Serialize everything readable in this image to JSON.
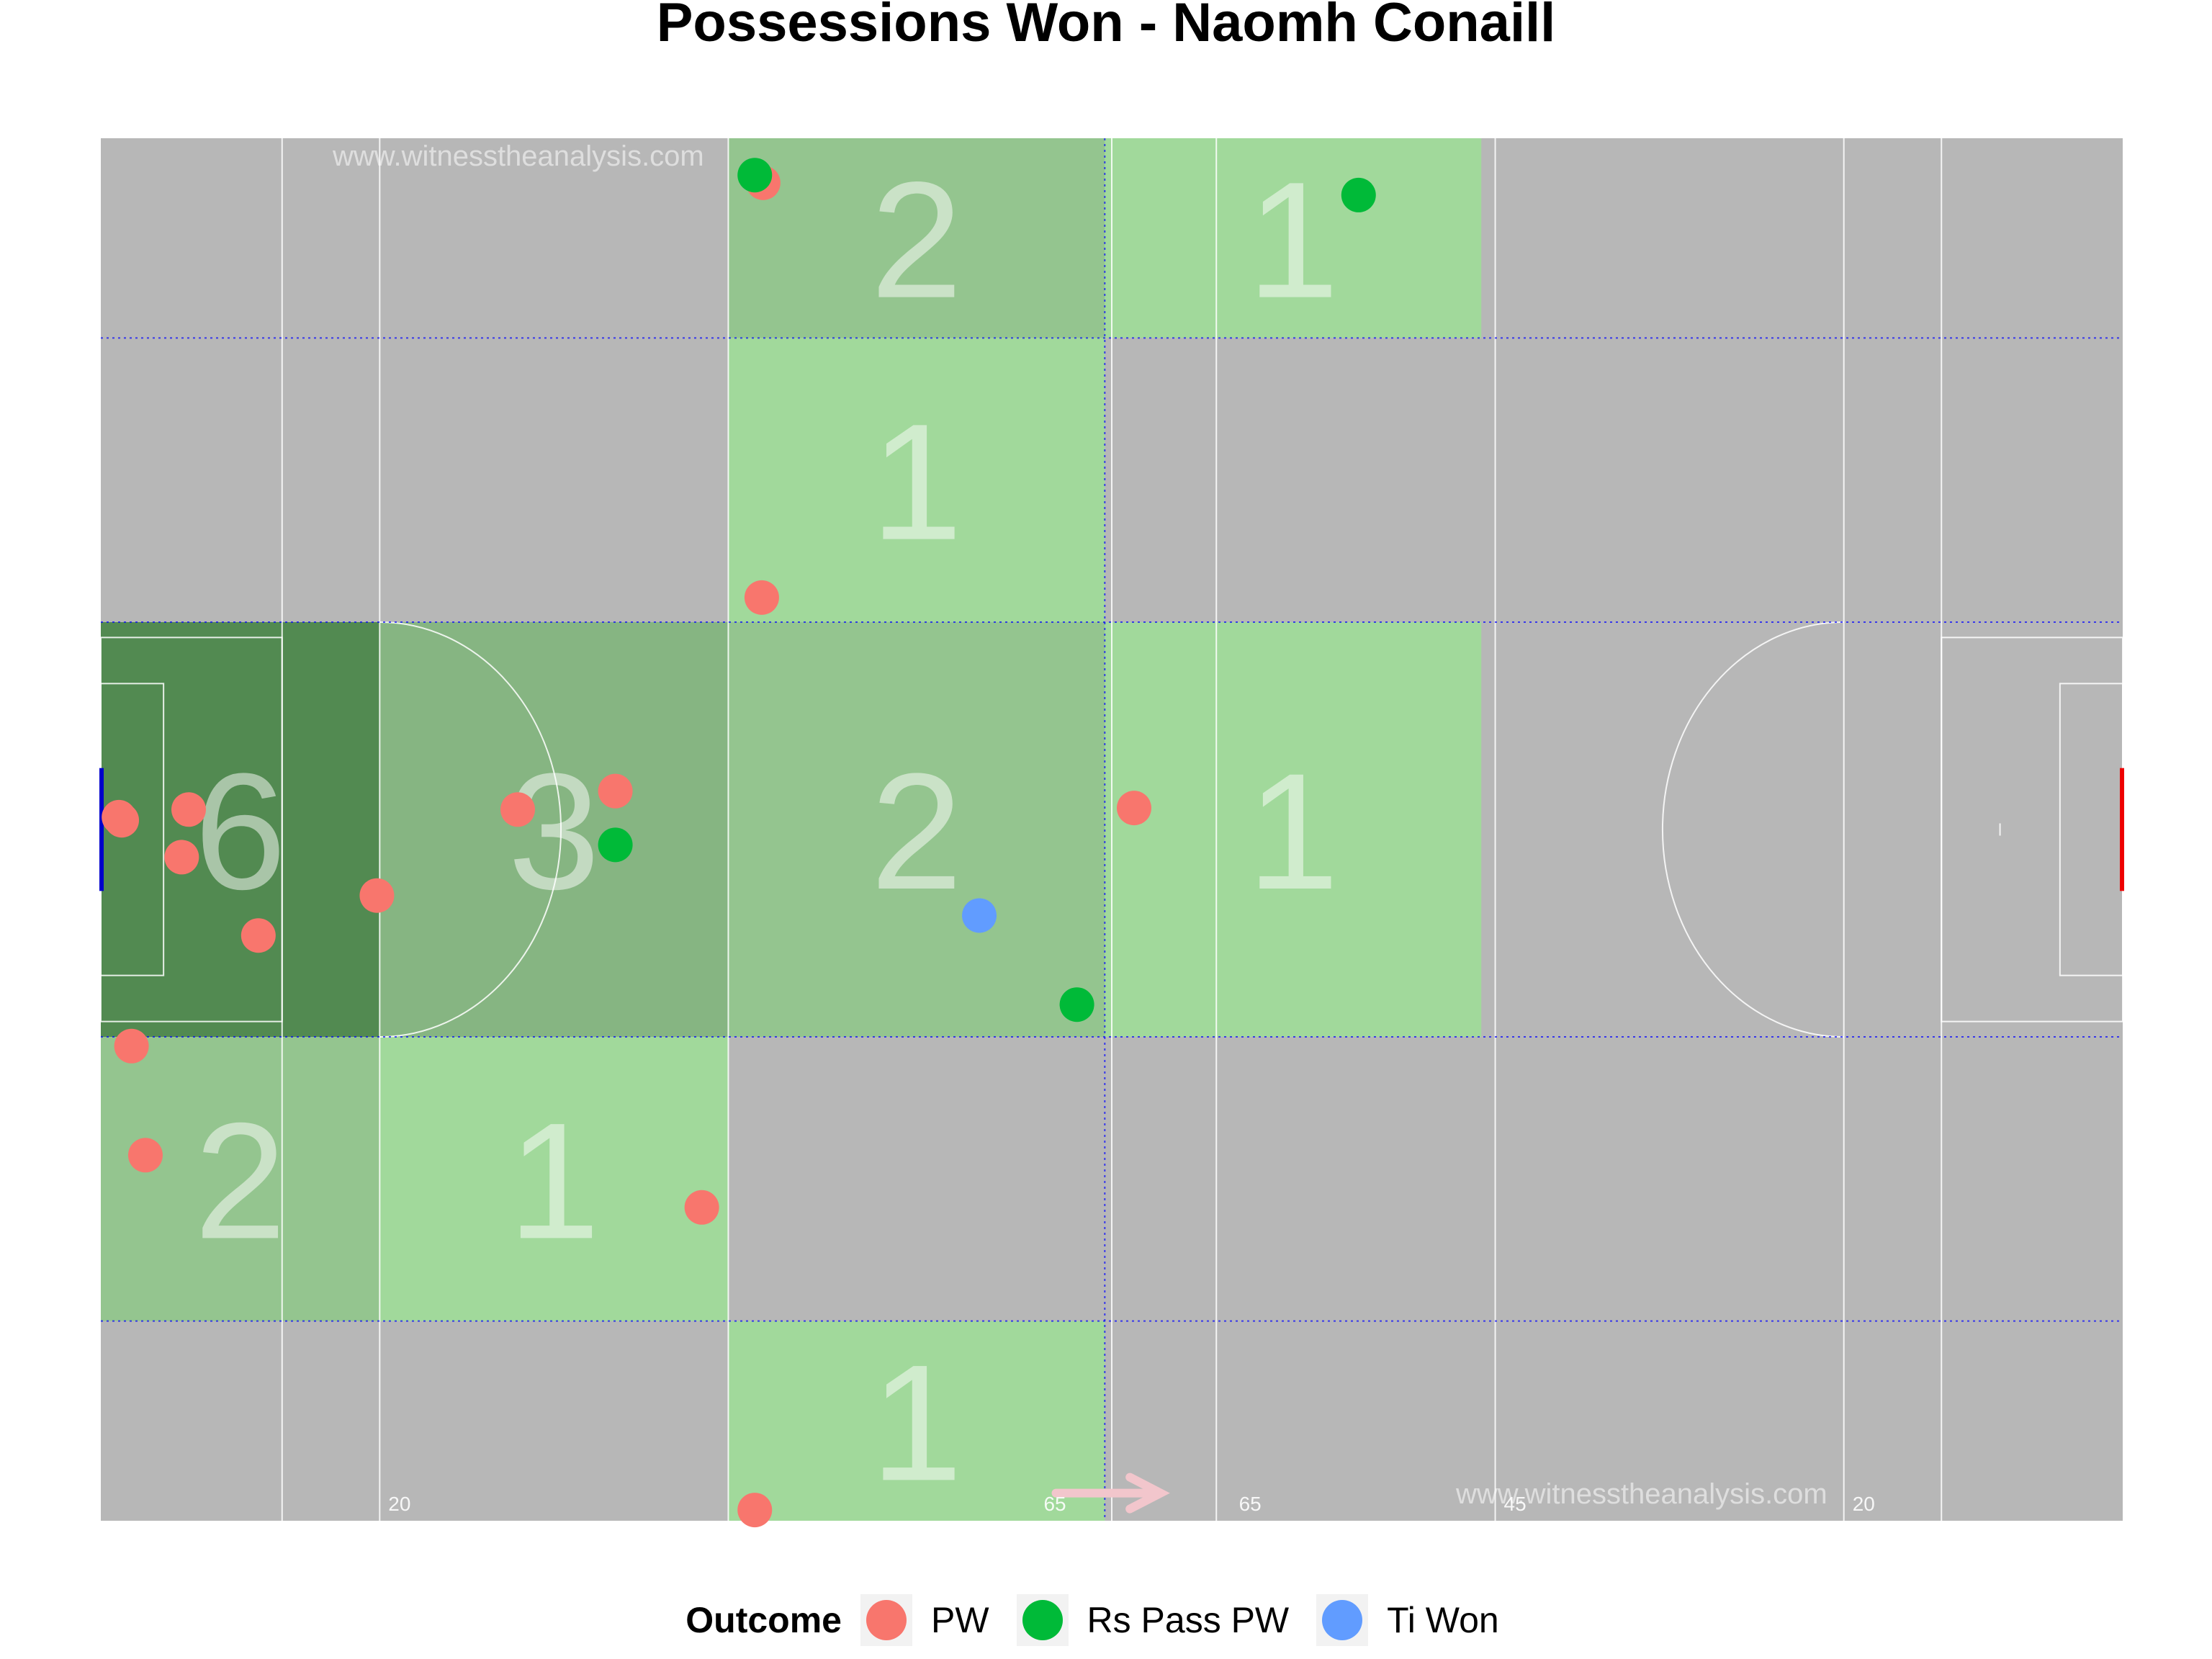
{
  "title": "Possessions Won - Naomh Conaill",
  "watermarks": [
    "www.witnesstheanalysis.com",
    "www.witnesstheanalysis.com"
  ],
  "colors": {
    "pitch": "#b7b7b7",
    "PW": "#f8766d",
    "Rs Pass PW": "#00ba38",
    "Ti Won": "#619cff",
    "zone_low": "#a1d99b",
    "zone_mid": "#94c58f",
    "zone_high": "#86b582",
    "zone_max": "#528a51",
    "zone_line": "#0000ff"
  },
  "legend": {
    "title": "Outcome",
    "items": [
      {
        "label": "PW",
        "color": "#f8766d"
      },
      {
        "label": "Rs Pass PW",
        "color": "#00ba38"
      },
      {
        "label": "Ti Won",
        "color": "#619cff"
      }
    ]
  },
  "pitch_line_labels": [
    "20",
    "65",
    "65",
    "45",
    "20"
  ],
  "chart_data": {
    "type": "scatter",
    "title": "Possessions Won - Naomh Conaill",
    "xlim": [
      0,
      145
    ],
    "ylim": [
      0,
      90
    ],
    "zone_counts": [
      {
        "x": [
          45,
          72
        ],
        "y": [
          77,
          90
        ],
        "count": 2
      },
      {
        "x": [
          72,
          99
        ],
        "y": [
          77,
          90
        ],
        "count": 1
      },
      {
        "x": [
          45,
          72
        ],
        "y": [
          58.5,
          77
        ],
        "count": 1
      },
      {
        "x": [
          0,
          20
        ],
        "y": [
          31.5,
          58.5
        ],
        "count": 6
      },
      {
        "x": [
          20,
          45
        ],
        "y": [
          31.5,
          58.5
        ],
        "count": 3
      },
      {
        "x": [
          45,
          72
        ],
        "y": [
          31.5,
          58.5
        ],
        "count": 2
      },
      {
        "x": [
          72,
          99
        ],
        "y": [
          31.5,
          58.5
        ],
        "count": 1
      },
      {
        "x": [
          0,
          20
        ],
        "y": [
          13,
          31.5
        ],
        "count": 2
      },
      {
        "x": [
          20,
          45
        ],
        "y": [
          13,
          31.5
        ],
        "count": 1
      },
      {
        "x": [
          45,
          72
        ],
        "y": [
          0,
          13
        ],
        "count": 1
      }
    ],
    "series": [
      {
        "name": "PW",
        "points": [
          [
            47.5,
            87.1
          ],
          [
            47.4,
            60.1
          ],
          [
            1.3,
            45.8
          ],
          [
            1.5,
            45.6
          ],
          [
            6.3,
            46.3
          ],
          [
            5.8,
            43.2
          ],
          [
            11.3,
            38.1
          ],
          [
            19.8,
            40.7
          ],
          [
            29.9,
            46.3
          ],
          [
            36.9,
            47.5
          ],
          [
            2.2,
            30.9
          ],
          [
            3.2,
            23.8
          ],
          [
            43.1,
            20.4
          ],
          [
            74.1,
            46.4
          ],
          [
            46.9,
            0.7
          ]
        ]
      },
      {
        "name": "Rs Pass PW",
        "points": [
          [
            46.9,
            87.6
          ],
          [
            90.2,
            86.3
          ],
          [
            36.9,
            44.0
          ],
          [
            70.0,
            33.6
          ]
        ]
      },
      {
        "name": "Ti Won",
        "points": [
          [
            63.0,
            39.4
          ]
        ]
      }
    ]
  }
}
